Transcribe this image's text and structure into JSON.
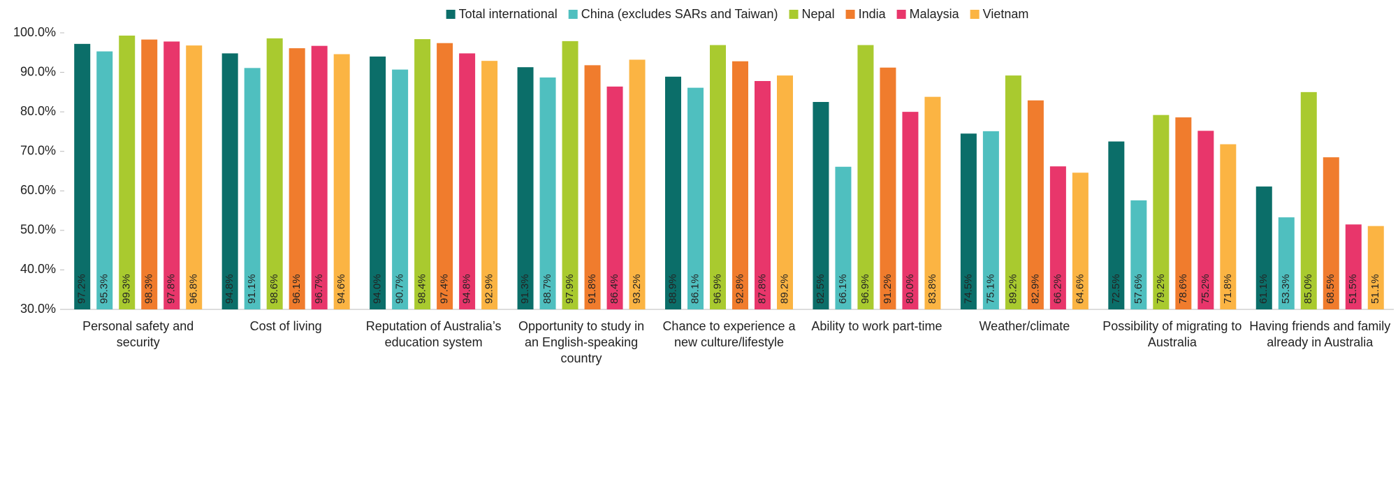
{
  "chart_data": {
    "type": "bar",
    "categories": [
      "Personal safety and security",
      "Cost of living",
      "Reputation of Australia’s education system",
      "Opportunity to study in an English-speaking country",
      "Chance to experience a new culture/lifestyle",
      "Ability to work part-time",
      "Weather/climate",
      "Possibility of migrating to Australia",
      "Having friends and family already in Australia"
    ],
    "series": [
      {
        "name": "Total international",
        "color": "#0b6e69",
        "values": [
          97.2,
          94.8,
          94.0,
          91.3,
          88.9,
          82.5,
          74.5,
          72.5,
          61.1
        ],
        "value_labels": [
          "97.2%",
          "94.8%",
          "94.0%",
          "91.3%",
          "88.9%",
          "82.5%",
          "74.5%",
          "72.5%",
          "61.1%"
        ]
      },
      {
        "name": "China (excludes SARs and Taiwan)",
        "color": "#4fbfbf",
        "values": [
          95.3,
          91.1,
          90.7,
          88.7,
          86.1,
          66.1,
          75.1,
          57.6,
          53.3
        ],
        "value_labels": [
          "95.3%",
          "91.1%",
          "90.7%",
          "88.7%",
          "86.1%",
          "66.1%",
          "75.1%",
          "57.6%",
          "53.3%"
        ]
      },
      {
        "name": "Nepal",
        "color": "#a9ca2f",
        "values": [
          99.3,
          98.6,
          98.4,
          97.9,
          96.9,
          96.9,
          89.2,
          79.2,
          85.0
        ],
        "value_labels": [
          "99.3%",
          "98.6%",
          "98.4%",
          "97.9%",
          "96.9%",
          "96.9%",
          "89.2%",
          "79.2%",
          "85.0%"
        ]
      },
      {
        "name": "India",
        "color": "#f07c2d",
        "values": [
          98.3,
          96.1,
          97.4,
          91.8,
          92.8,
          91.2,
          82.9,
          78.6,
          68.5
        ],
        "value_labels": [
          "98.3%",
          "96.1%",
          "97.4%",
          "91.8%",
          "92.8%",
          "91.2%",
          "82.9%",
          "78.6%",
          "68.5%"
        ]
      },
      {
        "name": "Malaysia",
        "color": "#e8366b",
        "values": [
          97.8,
          96.7,
          94.8,
          86.4,
          87.8,
          80.0,
          66.2,
          75.2,
          51.5
        ],
        "value_labels": [
          "97.8%",
          "96.7%",
          "94.8%",
          "86.4%",
          "87.8%",
          "80.0%",
          "66.2%",
          "75.2%",
          "51.5%"
        ]
      },
      {
        "name": "Vietnam",
        "color": "#fbb443",
        "values": [
          96.8,
          94.6,
          92.9,
          93.2,
          89.2,
          83.8,
          64.6,
          71.8,
          51.1
        ],
        "value_labels": [
          "96.8%",
          "94.6%",
          "92.9%",
          "93.2%",
          "89.2%",
          "83.8%",
          "64.6%",
          "71.8%",
          "51.1%"
        ]
      }
    ],
    "ylim": [
      30,
      100
    ],
    "yticks": [
      {
        "value": 30,
        "label": "30.0%"
      },
      {
        "value": 40,
        "label": "40.0%"
      },
      {
        "value": 50,
        "label": "50.0%"
      },
      {
        "value": 60,
        "label": "60.0%"
      },
      {
        "value": 70,
        "label": "70.0%"
      },
      {
        "value": 80,
        "label": "80.0%"
      },
      {
        "value": 90,
        "label": "90.0%"
      },
      {
        "value": 100,
        "label": "100.0%"
      }
    ],
    "legend": "top"
  }
}
